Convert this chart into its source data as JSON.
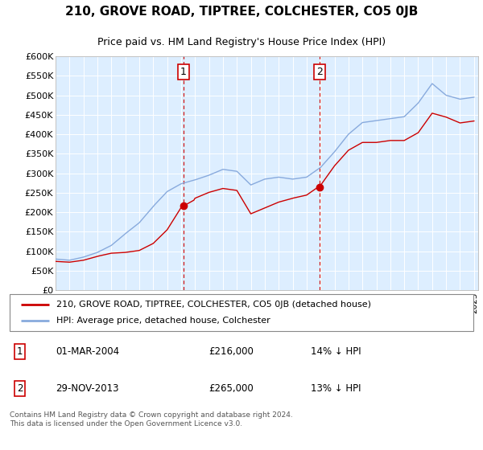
{
  "title": "210, GROVE ROAD, TIPTREE, COLCHESTER, CO5 0JB",
  "subtitle": "Price paid vs. HM Land Registry's House Price Index (HPI)",
  "legend_label_red": "210, GROVE ROAD, TIPTREE, COLCHESTER, CO5 0JB (detached house)",
  "legend_label_blue": "HPI: Average price, detached house, Colchester",
  "annotation1_label": "1",
  "annotation1_date": "01-MAR-2004",
  "annotation1_price": "£216,000",
  "annotation1_pct": "14% ↓ HPI",
  "annotation1_year": 2004.17,
  "annotation1_value": 216000,
  "annotation2_label": "2",
  "annotation2_date": "29-NOV-2013",
  "annotation2_price": "£265,000",
  "annotation2_pct": "13% ↓ HPI",
  "annotation2_year": 2013.91,
  "annotation2_value": 265000,
  "footer": "Contains HM Land Registry data © Crown copyright and database right 2024.\nThis data is licensed under the Open Government Licence v3.0.",
  "ylim": [
    0,
    600000
  ],
  "yticks": [
    0,
    50000,
    100000,
    150000,
    200000,
    250000,
    300000,
    350000,
    400000,
    450000,
    500000,
    550000,
    600000
  ],
  "bg_color": "#ddeeff",
  "red_color": "#cc0000",
  "blue_color": "#88aadd",
  "title_fontsize": 11,
  "subtitle_fontsize": 9
}
